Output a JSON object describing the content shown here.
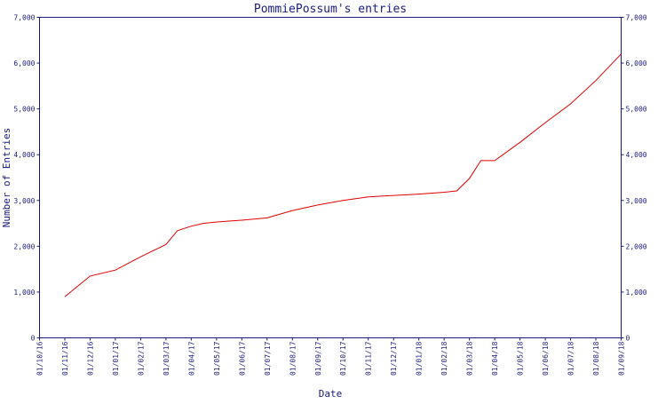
{
  "chart_data": {
    "type": "line",
    "title": "PommiePossum's entries",
    "xlabel": "Date",
    "ylabel": "Number of Entries",
    "ylim": [
      0,
      7000
    ],
    "y_ticks": [
      0,
      1000,
      2000,
      3000,
      4000,
      5000,
      6000,
      7000
    ],
    "y_tick_labels": [
      "0",
      "1,000",
      "2,000",
      "3,000",
      "4,000",
      "5,000",
      "6,000",
      "7,000"
    ],
    "x_tick_labels": [
      "01/10/16",
      "01/11/16",
      "01/12/16",
      "01/01/17",
      "01/02/17",
      "01/03/17",
      "01/04/17",
      "01/05/17",
      "01/06/17",
      "01/07/17",
      "01/08/17",
      "01/09/17",
      "01/10/17",
      "01/11/17",
      "01/12/17",
      "01/01/18",
      "01/02/18",
      "01/03/18",
      "01/04/18",
      "01/05/18",
      "01/06/18",
      "01/07/18",
      "01/08/18",
      "01/09/18"
    ],
    "grid": false,
    "y_axis_both_sides": true,
    "line_color": "#e00000",
    "axis_color": "#1a1a80",
    "series": [
      {
        "x": [
          "01/11/16",
          "01/12/16",
          "01/01/17",
          "01/02/17",
          "01/03/17",
          "15/03/17",
          "01/04/17",
          "15/04/17",
          "01/05/17",
          "01/06/17",
          "01/07/17",
          "01/08/17",
          "01/09/17",
          "01/10/17",
          "01/11/17",
          "01/12/17",
          "01/01/18",
          "01/02/18",
          "15/02/18",
          "01/03/18",
          "15/03/18",
          "01/04/18",
          "01/05/18",
          "01/06/18",
          "01/07/18",
          "01/08/18",
          "01/09/18"
        ],
        "values": [
          900,
          1350,
          1480,
          1770,
          2040,
          2340,
          2440,
          2500,
          2530,
          2570,
          2620,
          2780,
          2900,
          3000,
          3080,
          3110,
          3140,
          3180,
          3210,
          3480,
          3870,
          3870,
          4270,
          4700,
          5110,
          5620,
          6200
        ]
      }
    ]
  }
}
